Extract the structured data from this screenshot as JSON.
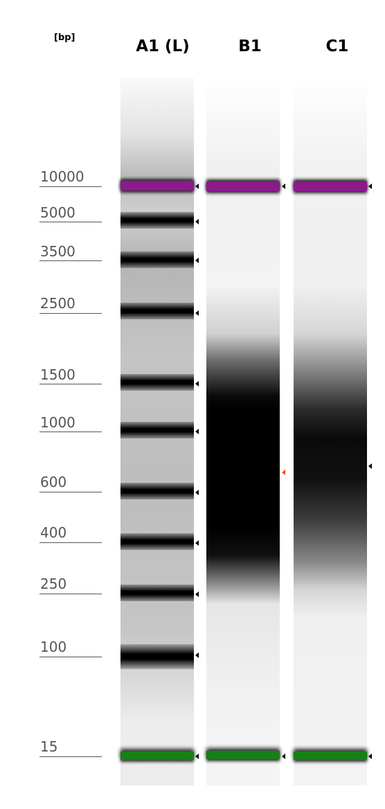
{
  "header": {
    "unit": "[bp]",
    "lanes": [
      "A1 (L)",
      "B1",
      "C1"
    ]
  },
  "ladder": {
    "sizes": [
      "10000",
      "5000",
      "3500",
      "2500",
      "1500",
      "1000",
      "600",
      "400",
      "250",
      "100",
      "15"
    ]
  },
  "colors": {
    "upper_marker": "#8b1a8b",
    "lower_marker": "#168016",
    "peak_arrow_highlight": "#ff4500",
    "peak_arrow": "#000000"
  },
  "lanes": [
    {
      "name": "A1 (L)",
      "type": "ladder",
      "bands_bp": [
        5000,
        3500,
        2500,
        1500,
        1000,
        600,
        400,
        250,
        100
      ],
      "markers": [
        "upper",
        "lower"
      ]
    },
    {
      "name": "B1",
      "type": "smear",
      "smear_range_bp": [
        250,
        1500
      ],
      "peak_highlighted": true,
      "markers": [
        "upper",
        "lower"
      ]
    },
    {
      "name": "C1",
      "type": "smear",
      "smear_range_bp": [
        250,
        1500
      ],
      "peak_highlighted": false,
      "markers": [
        "upper",
        "lower"
      ]
    }
  ]
}
